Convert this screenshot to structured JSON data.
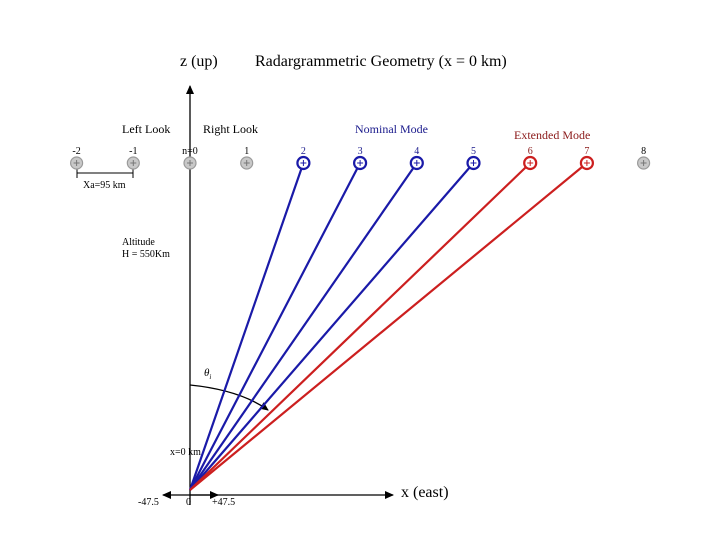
{
  "title": "Radargrammetric Geometry (x = 0 km)",
  "axes": {
    "z_label": "z (up)",
    "x_label": "x (east)"
  },
  "look_labels": {
    "left": "Left Look",
    "right": "Right Look"
  },
  "mode_labels": {
    "nominal": "Nominal Mode",
    "extended": "Extended Mode"
  },
  "satellite_positions": [
    {
      "n": -2,
      "label": "-2",
      "mode": "inactive"
    },
    {
      "n": -1,
      "label": "-1",
      "mode": "inactive"
    },
    {
      "n": 0,
      "label": "n=0",
      "mode": "inactive"
    },
    {
      "n": 1,
      "label": "1",
      "mode": "inactive"
    },
    {
      "n": 2,
      "label": "2",
      "mode": "nominal"
    },
    {
      "n": 3,
      "label": "3",
      "mode": "nominal"
    },
    {
      "n": 4,
      "label": "4",
      "mode": "nominal"
    },
    {
      "n": 5,
      "label": "5",
      "mode": "nominal"
    },
    {
      "n": 6,
      "label": "6",
      "mode": "extended"
    },
    {
      "n": 7,
      "label": "7",
      "mode": "extended"
    },
    {
      "n": 8,
      "label": "8",
      "mode": "inactive"
    }
  ],
  "spacing_label": "Xa=95 km",
  "altitude_label": {
    "line1": "Altitude",
    "line2": "H = 550Km"
  },
  "angle_label": "θ",
  "angle_subscript": "i",
  "ground_label": "x=0 km",
  "ground_ticks": {
    "left": "-47.5",
    "center": "0",
    "right": "+47.5"
  },
  "colors": {
    "nominal": "#1a1aa8",
    "extended": "#cc1f1f",
    "inactive": "#9a9a9a",
    "nominal_text": "#1a1a8c",
    "extended_text": "#8b1a1a",
    "axis": "#000000"
  }
}
